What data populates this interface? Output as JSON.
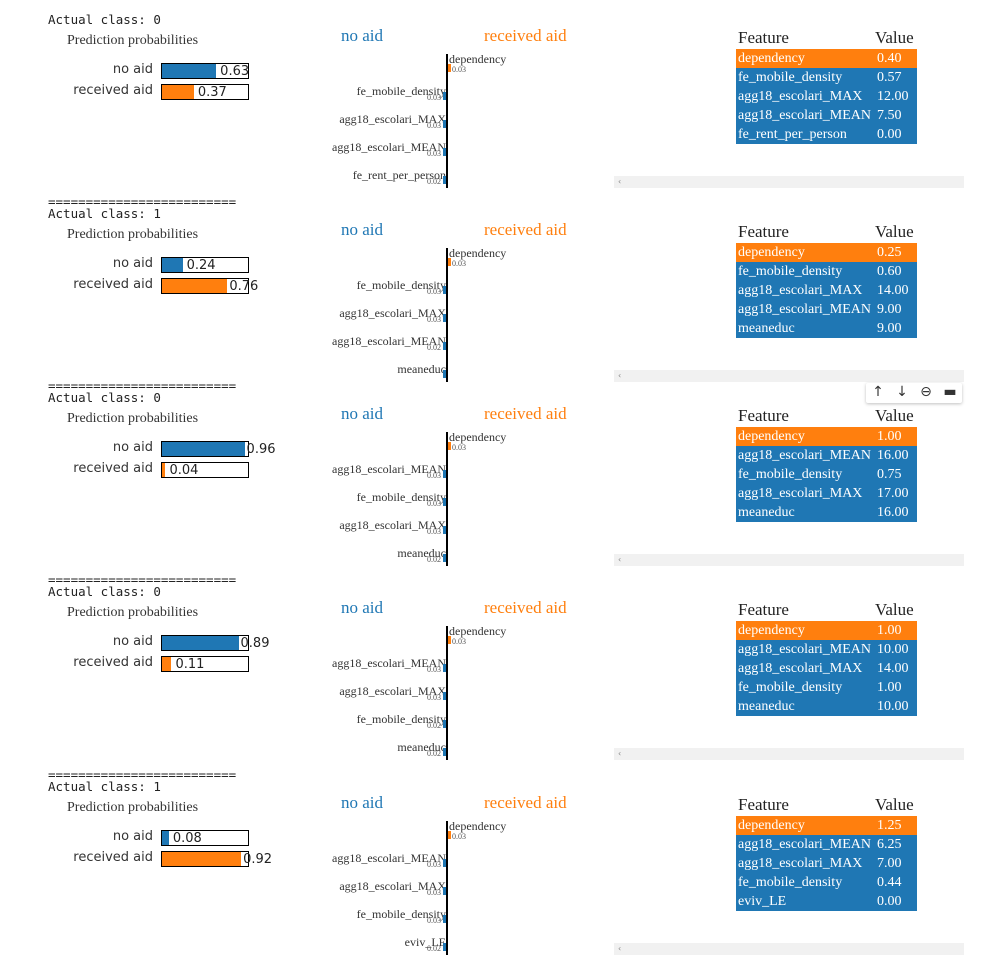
{
  "labels": {
    "separator": "=========================",
    "actual_prefix": "Actual class: ",
    "pred_title": "Prediction probabilities",
    "no_aid": "no aid",
    "received_aid": "received aid",
    "feature_col": "Feature",
    "value_col": "Value",
    "scroll_arrow": "‹"
  },
  "colors": {
    "no_aid": "#1f77b4",
    "received_aid": "#ff7f0e"
  },
  "toolbar": {
    "icons": [
      "arrow-up-icon",
      "arrow-down-icon",
      "link-icon",
      "comment-icon"
    ],
    "glyphs": [
      "↑",
      "↓",
      "⊖",
      "▬"
    ]
  },
  "instances": [
    {
      "actual": "0",
      "probs": [
        {
          "label": "no aid",
          "value": 0.63,
          "text": "0.63"
        },
        {
          "label": "received aid",
          "value": 0.37,
          "text": "0.37"
        }
      ],
      "features": [
        {
          "name": "dependency",
          "weight": "0.03",
          "class": "received_aid"
        },
        {
          "name": "fe_mobile_density",
          "weight": "0.03",
          "class": "no_aid"
        },
        {
          "name": "agg18_escolari_MAX",
          "weight": "0.03",
          "class": "no_aid"
        },
        {
          "name": "agg18_escolari_MEAN",
          "weight": "0.03",
          "class": "no_aid"
        },
        {
          "name": "fe_rent_per_person",
          "weight": "0.02",
          "class": "no_aid"
        }
      ],
      "table": [
        {
          "feature": "dependency",
          "value": "0.40",
          "class": "received_aid"
        },
        {
          "feature": "fe_mobile_density",
          "value": "0.57",
          "class": "no_aid"
        },
        {
          "feature": "agg18_escolari_MAX",
          "value": "12.00",
          "class": "no_aid"
        },
        {
          "feature": "agg18_escolari_MEAN",
          "value": "7.50",
          "class": "no_aid"
        },
        {
          "feature": "fe_rent_per_person",
          "value": "0.00",
          "class": "no_aid"
        }
      ]
    },
    {
      "actual": "1",
      "probs": [
        {
          "label": "no aid",
          "value": 0.24,
          "text": "0.24"
        },
        {
          "label": "received aid",
          "value": 0.76,
          "text": "0.76"
        }
      ],
      "features": [
        {
          "name": "dependency",
          "weight": "0.03",
          "class": "received_aid"
        },
        {
          "name": "fe_mobile_density",
          "weight": "0.03",
          "class": "no_aid"
        },
        {
          "name": "agg18_escolari_MAX",
          "weight": "0.03",
          "class": "no_aid"
        },
        {
          "name": "agg18_escolari_MEAN",
          "weight": "0.02",
          "class": "no_aid"
        },
        {
          "name": "meaneduc",
          "weight": "",
          "class": "no_aid"
        }
      ],
      "table": [
        {
          "feature": "dependency",
          "value": "0.25",
          "class": "received_aid"
        },
        {
          "feature": "fe_mobile_density",
          "value": "0.60",
          "class": "no_aid"
        },
        {
          "feature": "agg18_escolari_MAX",
          "value": "14.00",
          "class": "no_aid"
        },
        {
          "feature": "agg18_escolari_MEAN",
          "value": "9.00",
          "class": "no_aid"
        },
        {
          "feature": "meaneduc",
          "value": "9.00",
          "class": "no_aid"
        }
      ]
    },
    {
      "actual": "0",
      "probs": [
        {
          "label": "no aid",
          "value": 0.96,
          "text": "0.96"
        },
        {
          "label": "received aid",
          "value": 0.04,
          "text": "0.04"
        }
      ],
      "features": [
        {
          "name": "dependency",
          "weight": "0.03",
          "class": "received_aid"
        },
        {
          "name": "agg18_escolari_MEAN",
          "weight": "0.03",
          "class": "no_aid"
        },
        {
          "name": "fe_mobile_density",
          "weight": "0.03",
          "class": "no_aid"
        },
        {
          "name": "agg18_escolari_MAX",
          "weight": "0.03",
          "class": "no_aid"
        },
        {
          "name": "meaneduc",
          "weight": "0.02",
          "class": "no_aid"
        }
      ],
      "table": [
        {
          "feature": "dependency",
          "value": "1.00",
          "class": "received_aid"
        },
        {
          "feature": "agg18_escolari_MEAN",
          "value": "16.00",
          "class": "no_aid"
        },
        {
          "feature": "fe_mobile_density",
          "value": "0.75",
          "class": "no_aid"
        },
        {
          "feature": "agg18_escolari_MAX",
          "value": "17.00",
          "class": "no_aid"
        },
        {
          "feature": "meaneduc",
          "value": "16.00",
          "class": "no_aid"
        }
      ]
    },
    {
      "actual": "0",
      "probs": [
        {
          "label": "no aid",
          "value": 0.89,
          "text": "0.89"
        },
        {
          "label": "received aid",
          "value": 0.11,
          "text": "0.11"
        }
      ],
      "features": [
        {
          "name": "dependency",
          "weight": "0.03",
          "class": "received_aid"
        },
        {
          "name": "agg18_escolari_MEAN",
          "weight": "0.03",
          "class": "no_aid"
        },
        {
          "name": "agg18_escolari_MAX",
          "weight": "0.03",
          "class": "no_aid"
        },
        {
          "name": "fe_mobile_density",
          "weight": "0.02",
          "class": "no_aid"
        },
        {
          "name": "meaneduc",
          "weight": "0.02",
          "class": "no_aid"
        }
      ],
      "table": [
        {
          "feature": "dependency",
          "value": "1.00",
          "class": "received_aid"
        },
        {
          "feature": "agg18_escolari_MEAN",
          "value": "10.00",
          "class": "no_aid"
        },
        {
          "feature": "agg18_escolari_MAX",
          "value": "14.00",
          "class": "no_aid"
        },
        {
          "feature": "fe_mobile_density",
          "value": "1.00",
          "class": "no_aid"
        },
        {
          "feature": "meaneduc",
          "value": "10.00",
          "class": "no_aid"
        }
      ]
    },
    {
      "actual": "1",
      "probs": [
        {
          "label": "no aid",
          "value": 0.08,
          "text": "0.08"
        },
        {
          "label": "received aid",
          "value": 0.92,
          "text": "0.92"
        }
      ],
      "features": [
        {
          "name": "dependency",
          "weight": "0.03",
          "class": "received_aid"
        },
        {
          "name": "agg18_escolari_MEAN",
          "weight": "0.03",
          "class": "no_aid"
        },
        {
          "name": "agg18_escolari_MAX",
          "weight": "0.03",
          "class": "no_aid"
        },
        {
          "name": "fe_mobile_density",
          "weight": "0.03",
          "class": "no_aid"
        },
        {
          "name": "eviv_LE",
          "weight": "0.02",
          "class": "no_aid"
        }
      ],
      "table": [
        {
          "feature": "dependency",
          "value": "1.25",
          "class": "received_aid"
        },
        {
          "feature": "agg18_escolari_MEAN",
          "value": "6.25",
          "class": "no_aid"
        },
        {
          "feature": "agg18_escolari_MAX",
          "value": "7.00",
          "class": "no_aid"
        },
        {
          "feature": "fe_mobile_density",
          "value": "0.44",
          "class": "no_aid"
        },
        {
          "feature": "eviv_LE",
          "value": "0.00",
          "class": "no_aid"
        }
      ]
    }
  ]
}
